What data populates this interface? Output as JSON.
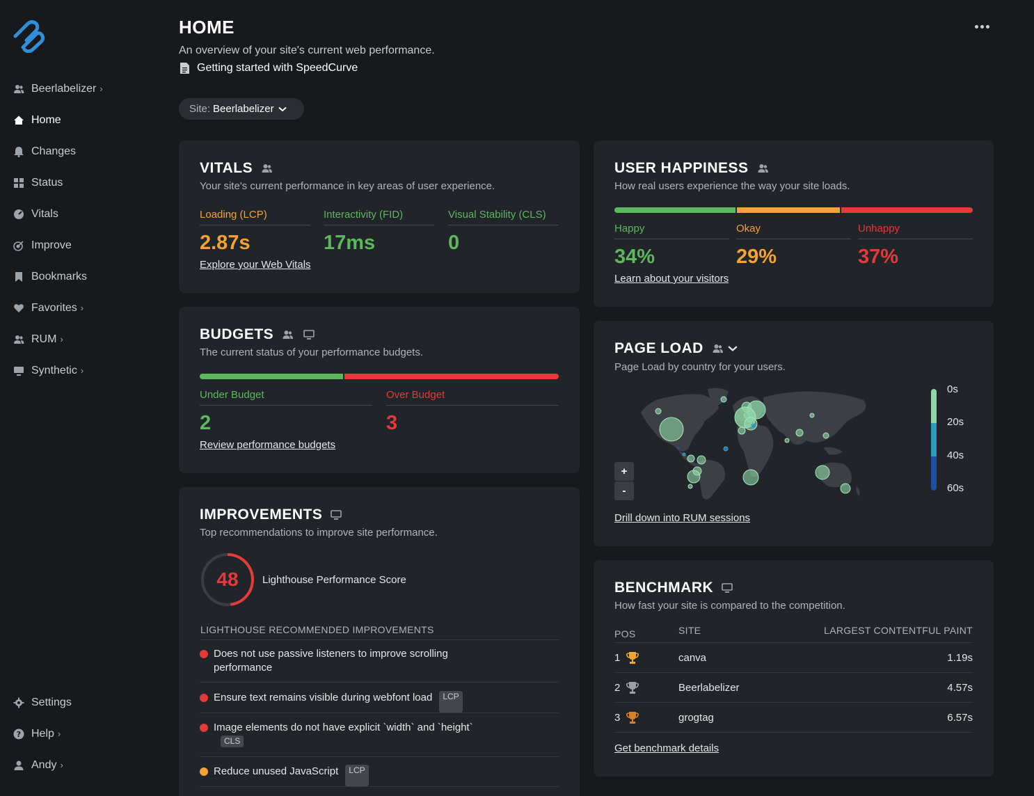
{
  "sidebar": {
    "account": {
      "label": "Beerlabelizer",
      "icon": "users-icon"
    },
    "items": [
      {
        "label": "Home",
        "icon": "home-icon",
        "active": true
      },
      {
        "label": "Changes",
        "icon": "bell-icon"
      },
      {
        "label": "Status",
        "icon": "grid-icon"
      },
      {
        "label": "Vitals",
        "icon": "gauge-icon"
      },
      {
        "label": "Improve",
        "icon": "target-icon"
      },
      {
        "label": "Bookmarks",
        "icon": "bookmark-icon"
      },
      {
        "label": "Favorites",
        "icon": "heart-icon"
      },
      {
        "label": "RUM",
        "icon": "users-icon"
      },
      {
        "label": "Synthetic",
        "icon": "monitor-icon"
      }
    ],
    "bottom": [
      {
        "label": "Settings",
        "icon": "gear-icon"
      },
      {
        "label": "Help",
        "icon": "help-icon"
      },
      {
        "label": "Andy",
        "icon": "user-icon"
      }
    ]
  },
  "header": {
    "title": "HOME",
    "subtitle": "An overview of your site's current web performance.",
    "guide_link": "Getting started with SpeedCurve",
    "site_label": "Site:",
    "site_value": "Beerlabelizer"
  },
  "vitals": {
    "title": "VITALS",
    "desc": "Your site's current performance in key areas of user experience.",
    "metrics": [
      {
        "label": "Loading (LCP)",
        "value": "2.87s",
        "color": "#f4a233"
      },
      {
        "label": "Interactivity (FID)",
        "value": "17ms",
        "color": "#5cb85c"
      },
      {
        "label": "Visual Stability (CLS)",
        "value": "0",
        "color": "#5cb85c"
      }
    ],
    "link": "Explore your Web Vitals"
  },
  "happiness": {
    "title": "USER HAPPINESS",
    "desc": "How real users experience the way your site loads.",
    "segments": [
      {
        "label": "Happy",
        "value": "34%",
        "fraction": 0.34,
        "color": "#5cb85c"
      },
      {
        "label": "Okay",
        "value": "29%",
        "fraction": 0.29,
        "color": "#f4a233"
      },
      {
        "label": "Unhappy",
        "value": "37%",
        "fraction": 0.37,
        "color": "#e5393a"
      }
    ],
    "link": "Learn about your visitors"
  },
  "budgets": {
    "title": "BUDGETS",
    "desc": "The current status of your performance budgets.",
    "under": {
      "label": "Under Budget",
      "value": "2",
      "fraction": 0.4
    },
    "over": {
      "label": "Over Budget",
      "value": "3",
      "fraction": 0.6
    },
    "link": "Review performance budgets"
  },
  "pageload": {
    "title": "PAGE LOAD",
    "desc": "Page Load by country for your users.",
    "legend": [
      "0s",
      "20s",
      "40s",
      "60s"
    ],
    "zoom_in": "+",
    "zoom_out": "-",
    "link": "Drill down into RUM sessions"
  },
  "improvements": {
    "title": "IMPROVEMENTS",
    "desc": "Top recommendations to improve site performance.",
    "score": "48",
    "score_fraction": 0.48,
    "score_label": "Lighthouse Performance Score",
    "list_head": "LIGHTHOUSE RECOMMENDED IMPROVEMENTS",
    "items": [
      {
        "text": "Does not use passive listeners to improve scrolling performance",
        "tag": "",
        "color": "#e5393a"
      },
      {
        "text": "Ensure text remains visible during webfont load",
        "tag": "LCP",
        "color": "#e5393a"
      },
      {
        "text": "Image elements do not have explicit `width` and `height`",
        "tag": "CLS",
        "color": "#e5393a"
      },
      {
        "text": "Reduce unused JavaScript",
        "tag": "LCP",
        "color": "#f4a233"
      }
    ]
  },
  "benchmark": {
    "title": "BENCHMARK",
    "desc": "How fast your site is compared to the competition.",
    "headers": [
      "POS",
      "SITE",
      "LARGEST CONTENTFUL PAINT"
    ],
    "rows": [
      {
        "pos": "1",
        "site": "canva",
        "lcp": "1.19s",
        "trophy": "gold-trophy-icon"
      },
      {
        "pos": "2",
        "site": "Beerlabelizer",
        "lcp": "4.57s",
        "trophy": "silver-trophy-icon"
      },
      {
        "pos": "3",
        "site": "grogtag",
        "lcp": "6.57s",
        "trophy": "bronze-trophy-icon"
      }
    ],
    "link": "Get benchmark details"
  }
}
